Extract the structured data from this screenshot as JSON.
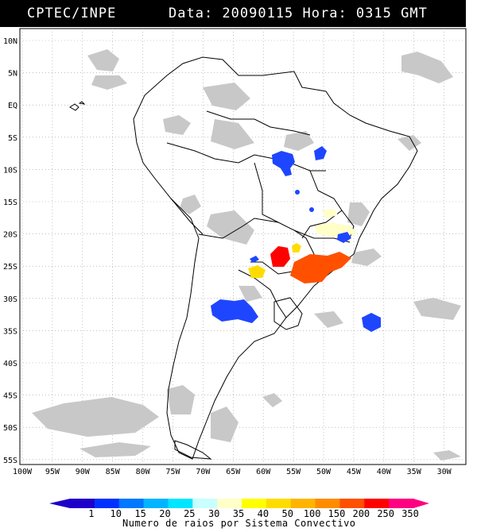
{
  "header": {
    "source": "CPTEC/INPE",
    "datetime": "Data: 20090115 Hora: 0315 GMT"
  },
  "map": {
    "lat_labels": [
      "10N",
      "5N",
      "EQ",
      "5S",
      "10S",
      "15S",
      "20S",
      "25S",
      "30S",
      "35S",
      "40S",
      "45S",
      "50S",
      "55S"
    ],
    "lon_labels": [
      "100W",
      "95W",
      "90W",
      "85W",
      "80W",
      "75W",
      "70W",
      "65W",
      "60W",
      "55W",
      "50W",
      "45W",
      "40W",
      "35W",
      "30W"
    ],
    "colors": {
      "cloud": "#c8c8c8",
      "coast": "#000000",
      "grid": "#9a9a9a"
    }
  },
  "legend": {
    "title": "Numero de raios por Sistema Convectivo",
    "labels": [
      "1",
      "10",
      "15",
      "20",
      "25",
      "30",
      "35",
      "40",
      "50",
      "100",
      "150",
      "200",
      "250",
      "350"
    ],
    "colors": [
      "#1e00c8",
      "#0032ff",
      "#0078ff",
      "#00b4ff",
      "#00e6ff",
      "#c8ffff",
      "#ffffc8",
      "#ffff00",
      "#ffdc00",
      "#ffb400",
      "#ff8c00",
      "#ff5000",
      "#ff0000",
      "#ff0080"
    ]
  },
  "systems": [
    {
      "label": "cluster-north-1",
      "color": "#1e46ff"
    },
    {
      "label": "cluster-north-2",
      "color": "#1e46ff"
    },
    {
      "label": "cluster-paraguay",
      "color": "#ff0000"
    },
    {
      "label": "cluster-south-brazil",
      "color": "#ff5000"
    },
    {
      "label": "cluster-argentina",
      "color": "#1e46ff"
    },
    {
      "label": "cluster-atlantic",
      "color": "#1e46ff"
    }
  ]
}
